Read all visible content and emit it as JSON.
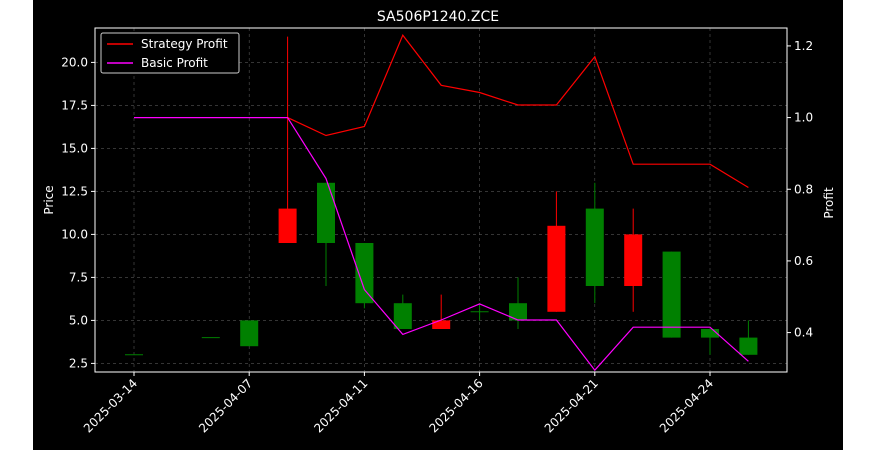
{
  "chart_data": {
    "type": "candlestick",
    "title": "SA506P1240.ZCE",
    "ylabel": "Price",
    "ylabel_right": "Profit",
    "ylim": [
      2.0,
      22.0
    ],
    "ylim_right": [
      0.29,
      1.25
    ],
    "yticks": [
      2.5,
      5.0,
      7.5,
      10.0,
      12.5,
      15.0,
      17.5,
      20.0
    ],
    "yticks_right": [
      0.4,
      0.6,
      0.8,
      1.0,
      1.2
    ],
    "grid": true,
    "legend_position": "top-left",
    "x_labels": [
      {
        "index": 0,
        "label": "2025-03-14"
      },
      {
        "index": 3,
        "label": "2025-04-07"
      },
      {
        "index": 6,
        "label": "2025-04-11"
      },
      {
        "index": 9,
        "label": "2025-04-16"
      },
      {
        "index": 12,
        "label": "2025-04-21"
      },
      {
        "index": 15,
        "label": "2025-04-24"
      }
    ],
    "candles": [
      {
        "open": 3.0,
        "close": 3.0,
        "high": 3.0,
        "low": 3.0
      },
      {
        "open": 2.0,
        "close": 2.0,
        "high": 2.0,
        "low": 2.0
      },
      {
        "open": 4.0,
        "close": 4.0,
        "high": 4.0,
        "low": 4.0
      },
      {
        "open": 3.5,
        "close": 5.0,
        "high": 5.0,
        "low": 3.5
      },
      {
        "open": 11.5,
        "close": 9.5,
        "high": 21.5,
        "low": 9.5
      },
      {
        "open": 9.5,
        "close": 13.0,
        "high": 13.0,
        "low": 7.0
      },
      {
        "open": 6.0,
        "close": 9.5,
        "high": 9.5,
        "low": 5.7
      },
      {
        "open": 4.5,
        "close": 6.0,
        "high": 6.5,
        "low": 4.5
      },
      {
        "open": 5.0,
        "close": 4.5,
        "high": 6.5,
        "low": 4.5
      },
      {
        "open": 5.5,
        "close": 5.5,
        "high": 6.0,
        "low": 5.0
      },
      {
        "open": 5.0,
        "close": 6.0,
        "high": 7.5,
        "low": 4.5
      },
      {
        "open": 10.5,
        "close": 5.5,
        "high": 12.5,
        "low": 5.5
      },
      {
        "open": 7.0,
        "close": 11.5,
        "high": 13.0,
        "low": 6.0
      },
      {
        "open": 10.0,
        "close": 7.0,
        "high": 11.5,
        "low": 5.5
      },
      {
        "open": 4.0,
        "close": 9.0,
        "high": 9.0,
        "low": 4.0
      },
      {
        "open": 4.0,
        "close": 4.5,
        "high": 4.5,
        "low": 3.0
      },
      {
        "open": 3.0,
        "close": 4.0,
        "high": 5.0,
        "low": 3.0
      }
    ],
    "series": [
      {
        "name": "Strategy Profit",
        "color": "#ff0000",
        "axis": "right",
        "x_start": 4,
        "values": [
          1.0,
          0.95,
          0.975,
          1.23,
          1.09,
          1.07,
          1.035,
          1.035,
          1.17,
          0.87,
          0.87,
          0.87,
          0.805
        ]
      },
      {
        "name": "Basic Profit",
        "color": "#ff00ff",
        "axis": "right",
        "x_start": 0,
        "values": [
          1.0,
          1.0,
          1.0,
          1.0,
          1.0,
          0.83,
          0.52,
          0.395,
          0.435,
          0.48,
          0.435,
          0.435,
          0.295,
          0.415,
          0.415,
          0.415,
          0.32
        ]
      }
    ],
    "colors": {
      "up": "#008000",
      "down": "#ff0000",
      "background": "#000000",
      "grid": "#555555"
    }
  }
}
